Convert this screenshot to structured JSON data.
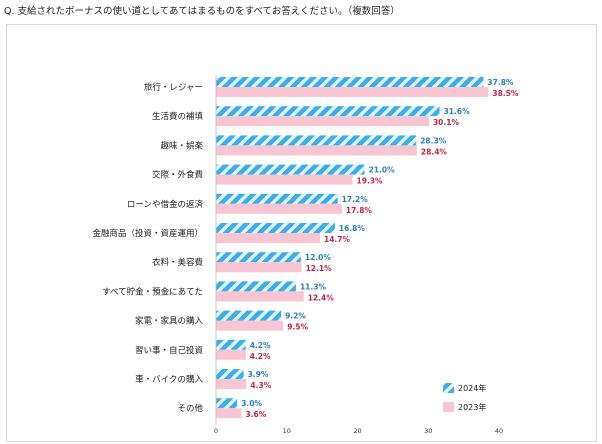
{
  "question": "Q.  支給されたボーナスの使い道としてあてはまるものをすべてお答えください。（複数回答）",
  "colors": {
    "series_2024": "#3aaee8",
    "series_2024_stripe": "#1a7fc4",
    "series_2023": "#f7c6d2",
    "label_2024": "#2a7fc0",
    "label_2023": "#c0254a"
  },
  "chart_data": {
    "type": "bar",
    "orientation": "horizontal",
    "categories": [
      "旅行・レジャー",
      "生活費の補填",
      "趣味・娯楽",
      "交際・外食費",
      "ローンや借金の返済",
      "金融商品（投資・資産運用）",
      "衣料・美容費",
      "すべて貯金・預金にあてた",
      "家電・家具の購入",
      "習い事・自己投資",
      "車・バイクの購入",
      "その他"
    ],
    "series": [
      {
        "name": "2024年",
        "values": [
          37.8,
          31.6,
          28.3,
          21.0,
          17.2,
          16.8,
          12.0,
          11.3,
          9.2,
          4.2,
          3.9,
          3.0
        ],
        "labels": [
          "37.8%",
          "31.6%",
          "28.3%",
          "21.0%",
          "17.2%",
          "16.8%",
          "12.0%",
          "11.3%",
          "9.2%",
          "4.2%",
          "3.9%",
          "3.0%"
        ]
      },
      {
        "name": "2023年",
        "values": [
          38.5,
          30.1,
          28.4,
          19.3,
          17.8,
          14.7,
          12.1,
          12.4,
          9.5,
          4.2,
          4.3,
          3.6
        ],
        "labels": [
          "38.5%",
          "30.1%",
          "28.4%",
          "19.3%",
          "17.8%",
          "14.7%",
          "12.1%",
          "12.4%",
          "9.5%",
          "4.2%",
          "4.3%",
          "3.6%"
        ]
      }
    ],
    "xlim": [
      0,
      40
    ],
    "xticks": [
      "0",
      "10",
      "20",
      "30",
      "40"
    ],
    "grid": false,
    "legend": "bottom-right"
  }
}
